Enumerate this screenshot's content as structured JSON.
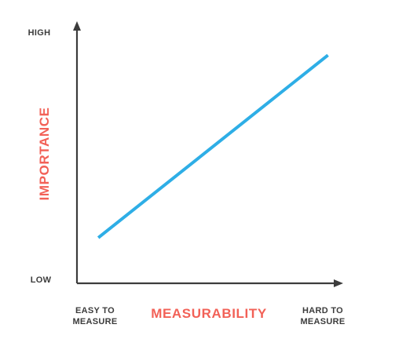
{
  "chart_data": {
    "type": "line",
    "xlabel": "MEASURABILITY",
    "ylabel": "IMPORTANCE",
    "x_tick_labels": {
      "low": [
        "EASY TO",
        "MEASURE"
      ],
      "high": [
        "HARD TO",
        "MEASURE"
      ]
    },
    "y_tick_labels": {
      "low": "LOW",
      "high": "HIGH"
    },
    "xlim": [
      0,
      1
    ],
    "ylim": [
      0,
      1
    ],
    "grid": false,
    "series": [
      {
        "x": [
          0.08,
          0.94
        ],
        "y": [
          0.18,
          0.9
        ]
      }
    ],
    "colors": {
      "line": "#2EAEE6",
      "axis_title": "#F26157",
      "axis": "#3C3C3C",
      "tick_text": "#3C3C3C"
    }
  }
}
